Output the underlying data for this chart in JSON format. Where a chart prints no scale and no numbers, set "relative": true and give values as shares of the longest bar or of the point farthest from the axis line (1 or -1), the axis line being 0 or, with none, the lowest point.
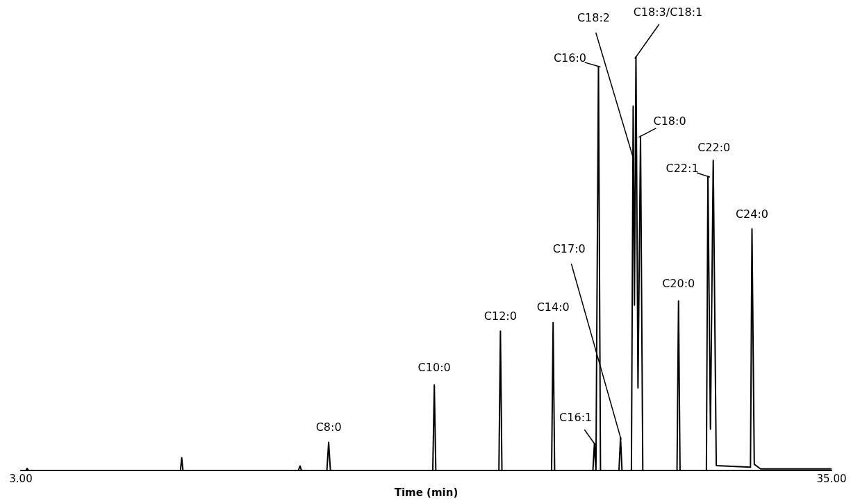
{
  "chart_data": {
    "type": "line",
    "xlabel": "Time (min)",
    "relative": true,
    "marker": "none",
    "line_style": "solid",
    "xlim": [
      3,
      35
    ],
    "xticks": [
      {
        "value": 3,
        "label": "3.00"
      },
      {
        "value": 35,
        "label": "35.00"
      }
    ],
    "series": [
      {
        "color": "#000000",
        "x": [
          3,
          3.2,
          3.25,
          3.3,
          4.5,
          9.3,
          9.35,
          9.4,
          13.95,
          14.02,
          14.08,
          15.08,
          15.15,
          15.22,
          19.26,
          19.32,
          19.38,
          21.87,
          21.93,
          21.99,
          23.95,
          24.01,
          24.07,
          25.58,
          25.64,
          25.7,
          25.8,
          25.88,
          26.61,
          26.67,
          26.73,
          27.1,
          27.17,
          27.22,
          27.28,
          27.36,
          27.46,
          27.55,
          28.9,
          28.96,
          29.02,
          30.06,
          30.12,
          30.22,
          30.33,
          30.45,
          31.8,
          31.86,
          31.95,
          32.2,
          35
        ],
        "values": [
          0,
          0,
          0.005,
          0,
          0,
          0,
          0.031,
          0,
          0,
          0.011,
          0,
          0,
          0.068,
          0,
          0,
          0.207,
          0,
          0,
          0.337,
          0,
          0,
          0.358,
          0,
          0,
          0.065,
          0,
          0.977,
          0,
          0,
          0.08,
          0,
          0,
          0.881,
          0.4,
          1,
          0.2,
          0.808,
          0,
          0,
          0.41,
          0,
          0,
          0.711,
          0.1,
          0.75,
          0.012,
          0.008,
          0.584,
          0.015,
          0.004,
          0.004
        ]
      }
    ],
    "annotations": [
      {
        "text": "C8:0",
        "x": 15.15,
        "y": 0.068
      },
      {
        "text": "C10:0",
        "x": 19.32,
        "y": 0.207
      },
      {
        "text": "C12:0",
        "x": 21.93,
        "y": 0.337
      },
      {
        "text": "C14:0",
        "x": 24.01,
        "y": 0.358
      },
      {
        "text": "C16:1",
        "x": 25.64,
        "y": 0.065
      },
      {
        "text": "C16:0",
        "x": 25.8,
        "y": 0.977
      },
      {
        "text": "C17:0",
        "x": 26.67,
        "y": 0.08
      },
      {
        "text": "C18:2",
        "x": 27.17,
        "y": 0.756
      },
      {
        "text": "C18:3/C18:1",
        "x": 27.28,
        "y": 1
      },
      {
        "text": "C18:0",
        "x": 27.46,
        "y": 0.808
      },
      {
        "text": "C20:0",
        "x": 28.96,
        "y": 0.41
      },
      {
        "text": "C22:1",
        "x": 30.12,
        "y": 0.711
      },
      {
        "text": "C22:0",
        "x": 30.33,
        "y": 0.75
      },
      {
        "text": "C24:0",
        "x": 31.86,
        "y": 0.584
      }
    ]
  }
}
